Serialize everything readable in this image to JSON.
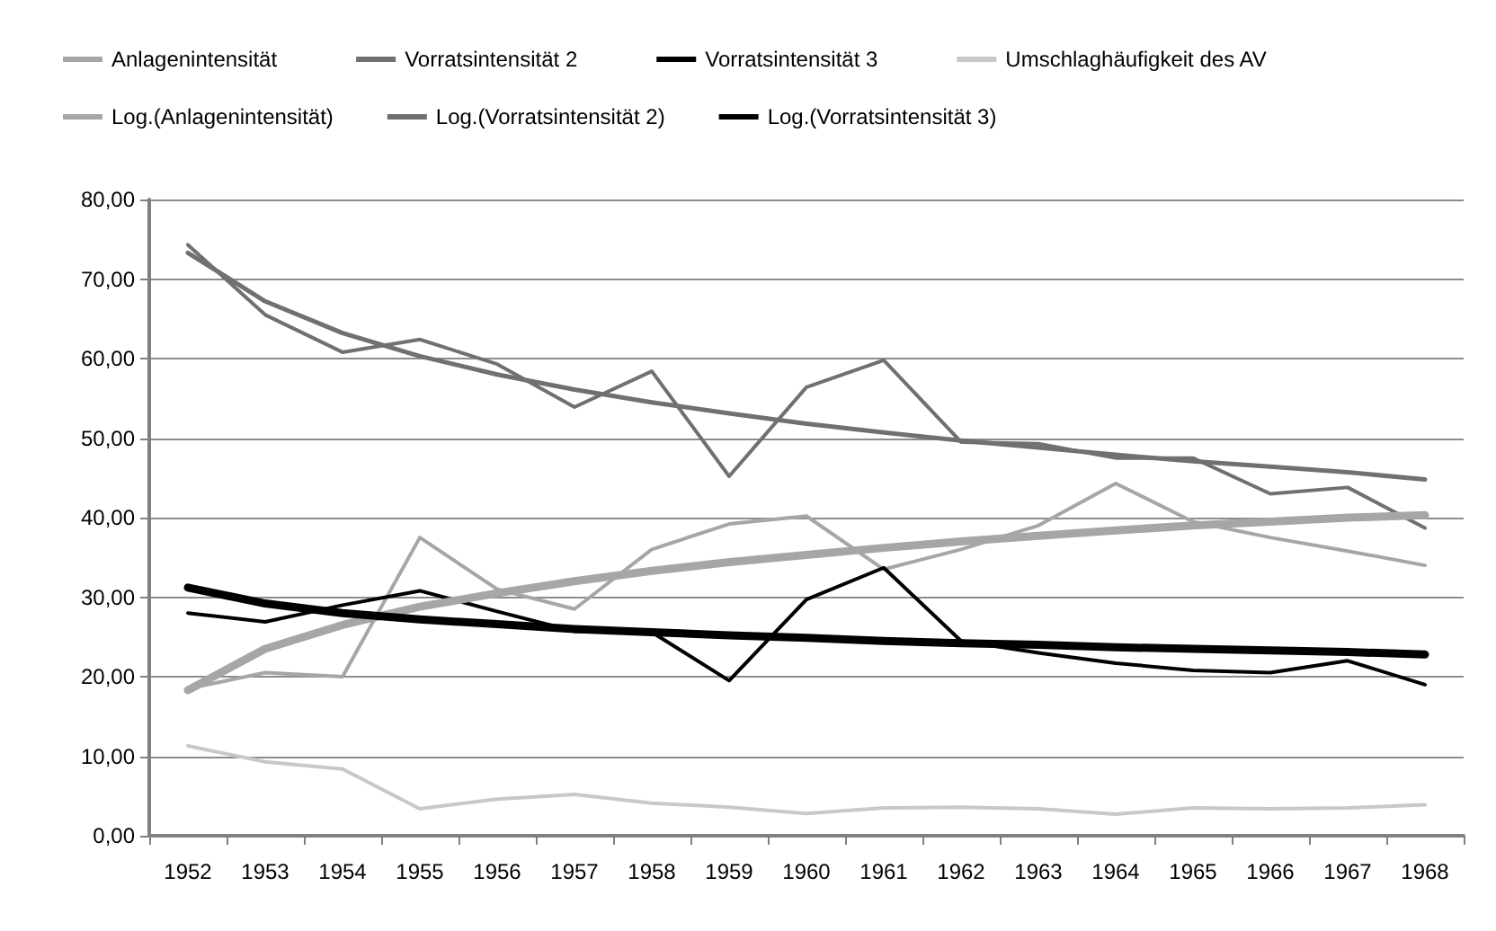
{
  "chart_data": {
    "type": "line",
    "categories": [
      "1952",
      "1953",
      "1954",
      "1955",
      "1956",
      "1957",
      "1958",
      "1959",
      "1960",
      "1961",
      "1962",
      "1963",
      "1964",
      "1965",
      "1966",
      "1967",
      "1968"
    ],
    "series": [
      {
        "name": "Anlagenintensität",
        "color": "#a6a6a6",
        "values": [
          18.5,
          20.5,
          20,
          37.5,
          31,
          28.5,
          36,
          39.2,
          40.2,
          33.5,
          36,
          39,
          44.3,
          39.5,
          37.5,
          35.8,
          34
        ]
      },
      {
        "name": "Vorratsintensität 2",
        "color": "#707070",
        "values": [
          74.3,
          65.5,
          60.8,
          62.4,
          59.3,
          53.9,
          58.4,
          45.2,
          56.4,
          59.8,
          49.5,
          49.3,
          47.5,
          47.5,
          43,
          43.8,
          38.7
        ]
      },
      {
        "name": "Vorratsintensität 3",
        "color": "#000000",
        "values": [
          28,
          26.9,
          29,
          30.8,
          28.2,
          25.7,
          25.6,
          19.5,
          29.7,
          33.7,
          24.5,
          23,
          21.7,
          20.8,
          20.5,
          22,
          19
        ]
      },
      {
        "name": "Umschlaghäufigkeit des AV",
        "color": "#c8c8c8",
        "values": [
          11.3,
          9.3,
          8.4,
          3.4,
          4.6,
          5.2,
          4.1,
          3.6,
          2.8,
          3.5,
          3.6,
          3.4,
          2.7,
          3.5,
          3.4,
          3.5,
          3.9
        ]
      },
      {
        "name": "Log.(Anlagenintensität)",
        "color": "#a6a6a6",
        "values": [
          18.3,
          23.5,
          26.5,
          28.8,
          30.5,
          32,
          33.3,
          34.4,
          35.3,
          36.2,
          37,
          37.7,
          38.4,
          39,
          39.5,
          40,
          40.3
        ]
      },
      {
        "name": "Log.(Vorratsintensität 2)",
        "color": "#707070",
        "values": [
          73.3,
          67.2,
          63.2,
          60.3,
          58,
          56.1,
          54.5,
          53.1,
          51.8,
          50.7,
          49.7,
          48.8,
          47.9,
          47.1,
          46.4,
          45.7,
          44.8
        ]
      },
      {
        "name": "Log.(Vorratsintensität 3)",
        "color": "#000000",
        "values": [
          31.2,
          29.2,
          28,
          27.2,
          26.6,
          26,
          25.6,
          25.2,
          24.9,
          24.5,
          24.2,
          24,
          23.7,
          23.5,
          23.3,
          23.1,
          22.8
        ]
      }
    ],
    "ylim": [
      0,
      80
    ],
    "yticks": [
      {
        "value": 0,
        "label": "0,00"
      },
      {
        "value": 10,
        "label": "10,00"
      },
      {
        "value": 20,
        "label": "20,00"
      },
      {
        "value": 30,
        "label": "30,00"
      },
      {
        "value": 40,
        "label": "40,00"
      },
      {
        "value": 50,
        "label": "50,00"
      },
      {
        "value": 60,
        "label": "60,00"
      },
      {
        "value": 70,
        "label": "70,00"
      },
      {
        "value": 80,
        "label": "80,00"
      }
    ],
    "grid": "y",
    "legend": "top",
    "marker": "none",
    "line_style": "solid"
  }
}
